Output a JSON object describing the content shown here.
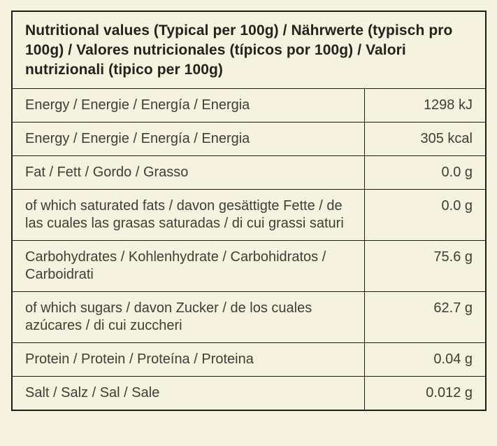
{
  "page": {
    "background_color": "#f5f2df",
    "border_color": "#1d1c18",
    "text_color": "#3f3e36",
    "header_text_color": "#23221d"
  },
  "table": {
    "header": "Nutritional values (Typical per 100g) / Nährwerte (typisch pro 100g) / Valores nutricionales (típicos por 100g) / Valori nutrizionali (tipico per 100g)",
    "rows": [
      {
        "label": "Energy / Energie / Energía / Energia",
        "value": "1298 kJ"
      },
      {
        "label": "Energy / Energie / Energía / Energia",
        "value": "305 kcal"
      },
      {
        "label": "Fat / Fett / Gordo / Grasso",
        "value": "0.0 g"
      },
      {
        "label": "of which saturated fats / davon gesättigte Fette / de las cuales las grasas saturadas / di cui grassi saturi",
        "value": "0.0 g"
      },
      {
        "label": "Carbohydrates / Kohlenhydrate / Carbohidratos / Carboidrati",
        "value": "75.6 g"
      },
      {
        "label": "of which sugars / davon Zucker / de los cuales azúcares / di cui zuccheri",
        "value": "62.7 g"
      },
      {
        "label": "Protein / Protein / Proteína / Proteina",
        "value": "0.04 g"
      },
      {
        "label": "Salt / Salz / Sal / Sale",
        "value": "0.012 g"
      }
    ]
  }
}
